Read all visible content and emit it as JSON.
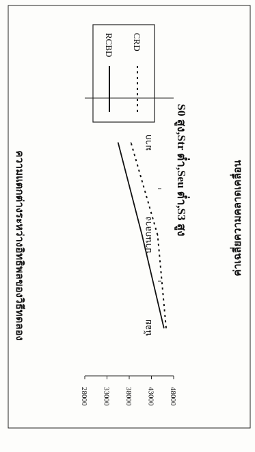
{
  "chart_data": {
    "type": "line",
    "orientation": "rotated-90-clockwise",
    "title": "S0 สูง,Str ต่ำ,Seu ต่ำ,S3 สูง",
    "xlabel": "ความแตกต่างระหว่างอิทธิพลของวิธีทดลอง",
    "ylabel": "ค่าเฉลี่ยความคลาดเคลื่อน",
    "categories": [
      "น้อย",
      "ปานกลาง",
      "มาก"
    ],
    "ylim": [
      28000,
      48000
    ],
    "yticks": [
      48000,
      43000,
      38000,
      33000,
      28000
    ],
    "series": [
      {
        "name": "CRD",
        "style": "dotted",
        "color": "#111111",
        "values": [
          46300,
          44400,
          38400
        ]
      },
      {
        "name": "RCBD",
        "style": "solid",
        "color": "#111111",
        "values": [
          45800,
          40900,
          35500
        ]
      }
    ],
    "legend_position": "right"
  }
}
